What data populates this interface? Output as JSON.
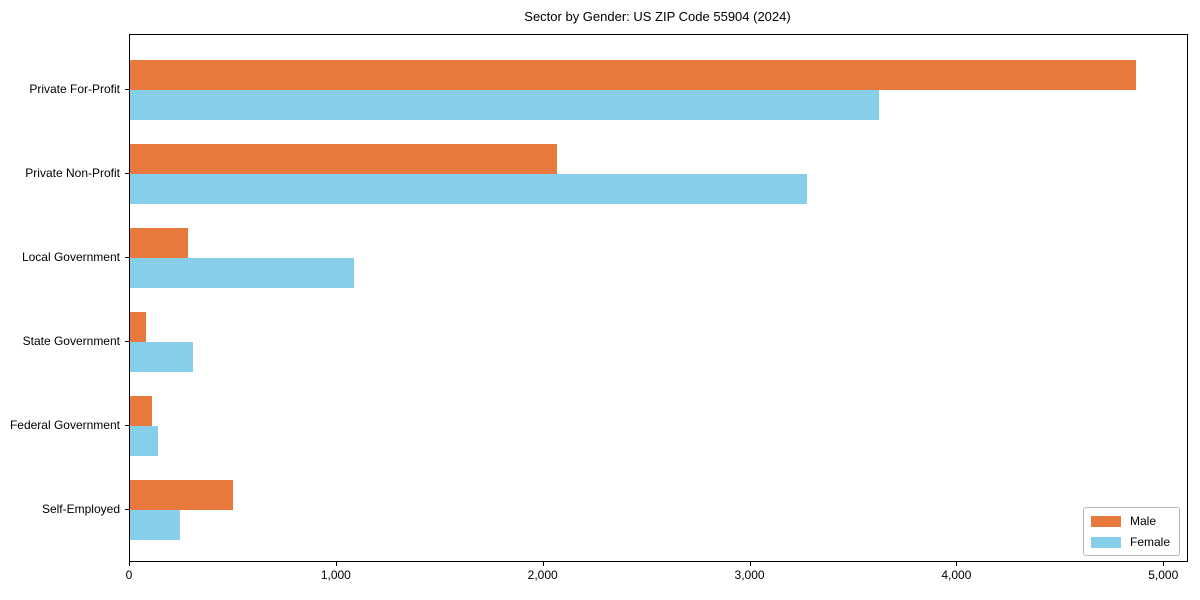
{
  "chart_data": {
    "type": "bar",
    "orientation": "horizontal",
    "title": "Sector by Gender: US ZIP Code 55904 (2024)",
    "categories": [
      "Private For-Profit",
      "Private Non-Profit",
      "Local Government",
      "State Government",
      "Federal Government",
      "Self-Employed"
    ],
    "series": [
      {
        "name": "Male",
        "color": "#E8793D",
        "values": [
          4865,
          2065,
          278,
          77,
          106,
          500
        ]
      },
      {
        "name": "Female",
        "color": "#87CEEB",
        "values": [
          3620,
          3275,
          1085,
          303,
          135,
          242
        ]
      }
    ],
    "xlabel": "",
    "ylabel": "",
    "xlim": [
      0,
      5110
    ],
    "xticks": [
      0,
      1000,
      2000,
      3000,
      4000,
      5000
    ],
    "xtick_labels": [
      "0",
      "1,000",
      "2,000",
      "3,000",
      "4,000",
      "5,000"
    ],
    "grid": false,
    "legend": {
      "position": "lower right"
    }
  }
}
